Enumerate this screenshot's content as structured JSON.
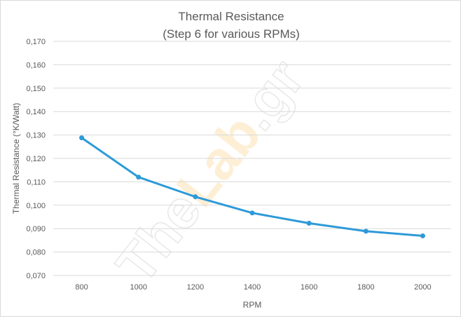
{
  "chart_data": {
    "type": "line",
    "title": "Thermal Resistance",
    "subtitle": "(Step 6 for various RPMs)",
    "xlabel": "RPM",
    "ylabel": "Thermal Resistance (°K/Watt)",
    "categories": [
      "800",
      "1000",
      "1200",
      "1400",
      "1600",
      "1800",
      "2000"
    ],
    "values": [
      0.1288,
      0.112,
      0.1036,
      0.0967,
      0.0923,
      0.0889,
      0.0869
    ],
    "ylim": [
      0.07,
      0.17
    ],
    "yticks": [
      "0,070",
      "0,080",
      "0,090",
      "0,100",
      "0,110",
      "0,120",
      "0,130",
      "0,140",
      "0,150",
      "0,160",
      "0,170"
    ],
    "grid": true,
    "line_color": "#2e9ad8",
    "watermark": "TheLab.gr"
  }
}
